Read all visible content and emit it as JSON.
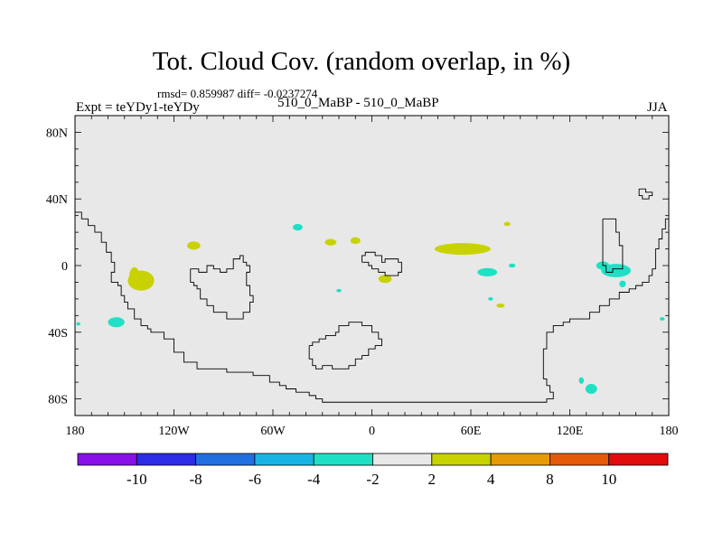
{
  "chart_data": {
    "type": "heatmap",
    "title": "Tot. Cloud Cov. (random overlap, in %)",
    "stats_text": "rmsd= 0.859987 diff= -0.0237274",
    "left_label": "Expt = teYDy1-teYDy",
    "center_label": "510_0_MaBP - 510_0_MaBP",
    "right_label": "JJA",
    "xlim": [
      -180,
      180
    ],
    "ylim": [
      -90,
      90
    ],
    "x_ticks": [
      {
        "value": -180,
        "label": "180"
      },
      {
        "value": -120,
        "label": "120W"
      },
      {
        "value": -60,
        "label": "60W"
      },
      {
        "value": 0,
        "label": "0"
      },
      {
        "value": 60,
        "label": "60E"
      },
      {
        "value": 120,
        "label": "120E"
      },
      {
        "value": 180,
        "label": "180"
      }
    ],
    "y_ticks": [
      {
        "value": 80,
        "label": "80N"
      },
      {
        "value": 40,
        "label": "40N"
      },
      {
        "value": 0,
        "label": "0"
      },
      {
        "value": -40,
        "label": "40S"
      },
      {
        "value": -80,
        "label": "80S"
      }
    ],
    "background_color": "#e8e8e8",
    "colorbar": {
      "colors": [
        "#8a10e8",
        "#2c2ce4",
        "#1f6fe0",
        "#19b4e6",
        "#1fe0c4",
        "#e8e8e8",
        "#c8d200",
        "#e69a08",
        "#e45a08",
        "#e00c0c"
      ],
      "labels": [
        "-10",
        "-8",
        "-6",
        "-4",
        "-2",
        "2",
        "4",
        "8",
        "10"
      ]
    },
    "anomalies": [
      {
        "class": "+2..+4",
        "color": "#c8d200",
        "lon": -140,
        "lat": -9,
        "rlon": 8,
        "rlat": 6
      },
      {
        "class": "+2..+4",
        "color": "#c8d200",
        "lon": -144,
        "lat": -6,
        "rlon": 3,
        "rlat": 5
      },
      {
        "class": "+2..+4",
        "color": "#c8d200",
        "lon": -108,
        "lat": 12,
        "rlon": 4,
        "rlat": 2.5
      },
      {
        "class": "+2..+4",
        "color": "#c8d200",
        "lon": -25,
        "lat": 14,
        "rlon": 3.5,
        "rlat": 2
      },
      {
        "class": "+2..+4",
        "color": "#c8d200",
        "lon": -10,
        "lat": 15,
        "rlon": 3,
        "rlat": 2
      },
      {
        "class": "+2..+4",
        "color": "#c8d200",
        "lon": 8,
        "lat": -8,
        "rlon": 4,
        "rlat": 2.5
      },
      {
        "class": "+2..+4",
        "color": "#c8d200",
        "lon": 55,
        "lat": 10,
        "rlon": 17,
        "rlat": 3.5
      },
      {
        "class": "+2..+4",
        "color": "#c8d200",
        "lon": 82,
        "lat": 25,
        "rlon": 2,
        "rlat": 1.2
      },
      {
        "class": "+2..+4",
        "color": "#c8d200",
        "lon": 78,
        "lat": -24,
        "rlon": 2.5,
        "rlat": 1.2
      },
      {
        "class": "-4..-2",
        "color": "#1fe0c4",
        "lon": -155,
        "lat": -34,
        "rlon": 5,
        "rlat": 3
      },
      {
        "class": "-4..-2",
        "color": "#1fe0c4",
        "lon": -178,
        "lat": -35,
        "rlon": 1.2,
        "rlat": 1
      },
      {
        "class": "-4..-2",
        "color": "#1fe0c4",
        "lon": -45,
        "lat": 23,
        "rlon": 3,
        "rlat": 2
      },
      {
        "class": "-4..-2",
        "color": "#1fe0c4",
        "lon": -20,
        "lat": -15,
        "rlon": 1.5,
        "rlat": 1
      },
      {
        "class": "-4..-2",
        "color": "#1fe0c4",
        "lon": 70,
        "lat": -4,
        "rlon": 6,
        "rlat": 2.5
      },
      {
        "class": "-4..-2",
        "color": "#1fe0c4",
        "lon": 72,
        "lat": -20,
        "rlon": 1.5,
        "rlat": 1
      },
      {
        "class": "-4..-2",
        "color": "#1fe0c4",
        "lon": 85,
        "lat": 0,
        "rlon": 2,
        "rlat": 1.2
      },
      {
        "class": "-4..-2",
        "color": "#1fe0c4",
        "lon": 148,
        "lat": -3,
        "rlon": 9,
        "rlat": 4
      },
      {
        "class": "-4..-2",
        "color": "#1fe0c4",
        "lon": 140,
        "lat": 0,
        "rlon": 4,
        "rlat": 2.5
      },
      {
        "class": "-4..-2",
        "color": "#1fe0c4",
        "lon": 152,
        "lat": -11,
        "rlon": 2,
        "rlat": 2
      },
      {
        "class": "-4..-2",
        "color": "#1fe0c4",
        "lon": 176,
        "lat": -32,
        "rlon": 1.5,
        "rlat": 1
      },
      {
        "class": "-4..-2",
        "color": "#1fe0c4",
        "lon": 133,
        "lat": -74,
        "rlon": 3.5,
        "rlat": 3
      },
      {
        "class": "-4..-2",
        "color": "#1fe0c4",
        "lon": 127,
        "lat": -69,
        "rlon": 1.5,
        "rlat": 2
      }
    ],
    "coastlines": [
      [
        [
          -180,
          32
        ],
        [
          -176,
          28
        ],
        [
          -172,
          24
        ],
        [
          -168,
          20
        ],
        [
          -164,
          14
        ],
        [
          -161,
          8
        ],
        [
          -158,
          2
        ],
        [
          -156,
          -4
        ],
        [
          -158,
          -10
        ],
        [
          -154,
          -12
        ],
        [
          -152,
          -18
        ],
        [
          -150,
          -22
        ],
        [
          -148,
          -26
        ],
        [
          -144,
          -32
        ],
        [
          -140,
          -36
        ],
        [
          -136,
          -38
        ],
        [
          -134,
          -40
        ],
        [
          -128,
          -40
        ],
        [
          -126,
          -44
        ],
        [
          -120,
          -52
        ],
        [
          -114,
          -58
        ],
        [
          -106,
          -62
        ],
        [
          -98,
          -62
        ],
        [
          -88,
          -64
        ],
        [
          -72,
          -66
        ],
        [
          -62,
          -70
        ],
        [
          -56,
          -72
        ],
        [
          -52,
          -74
        ],
        [
          -46,
          -76
        ],
        [
          -38,
          -78
        ],
        [
          -34,
          -80
        ],
        [
          -30,
          -82
        ],
        [
          -20,
          -82
        ],
        [
          0,
          -82
        ],
        [
          40,
          -82
        ],
        [
          80,
          -82
        ],
        [
          100,
          -82
        ],
        [
          106,
          -80
        ],
        [
          110,
          -76
        ],
        [
          108,
          -72
        ],
        [
          106,
          -68
        ],
        [
          104,
          -60
        ],
        [
          104,
          -50
        ],
        [
          106,
          -40
        ],
        [
          110,
          -36
        ],
        [
          116,
          -34
        ],
        [
          120,
          -32
        ],
        [
          126,
          -32
        ],
        [
          132,
          -28
        ],
        [
          138,
          -24
        ],
        [
          144,
          -20
        ],
        [
          150,
          -16
        ],
        [
          156,
          -14
        ],
        [
          160,
          -12
        ],
        [
          164,
          -10
        ],
        [
          168,
          -6
        ],
        [
          170,
          -2
        ],
        [
          172,
          4
        ],
        [
          172,
          10
        ],
        [
          174,
          16
        ],
        [
          176,
          22
        ],
        [
          178,
          28
        ],
        [
          180,
          32
        ]
      ],
      [
        [
          -110,
          -2
        ],
        [
          -105,
          -4
        ],
        [
          -100,
          0
        ],
        [
          -96,
          -2
        ],
        [
          -92,
          -4
        ],
        [
          -88,
          -2
        ],
        [
          -84,
          4
        ],
        [
          -80,
          6
        ],
        [
          -78,
          2
        ],
        [
          -76,
          0
        ],
        [
          -74,
          -4
        ],
        [
          -76,
          -8
        ],
        [
          -76,
          -12
        ],
        [
          -74,
          -18
        ],
        [
          -72,
          -22
        ],
        [
          -74,
          -28
        ],
        [
          -78,
          -32
        ],
        [
          -86,
          -32
        ],
        [
          -88,
          -28
        ],
        [
          -94,
          -28
        ],
        [
          -96,
          -24
        ],
        [
          -100,
          -20
        ],
        [
          -104,
          -14
        ],
        [
          -106,
          -12
        ],
        [
          -108,
          -10
        ],
        [
          -110,
          -6
        ],
        [
          -110,
          -2
        ]
      ],
      [
        [
          -6,
          2
        ],
        [
          -2,
          0
        ],
        [
          0,
          -2
        ],
        [
          4,
          -4
        ],
        [
          8,
          -6
        ],
        [
          16,
          -4
        ],
        [
          18,
          -2
        ],
        [
          18,
          2
        ],
        [
          16,
          4
        ],
        [
          12,
          4
        ],
        [
          8,
          2
        ],
        [
          6,
          6
        ],
        [
          2,
          8
        ],
        [
          -4,
          6
        ],
        [
          -6,
          2
        ]
      ],
      [
        [
          -38,
          -48
        ],
        [
          -36,
          -46
        ],
        [
          -32,
          -44
        ],
        [
          -28,
          -42
        ],
        [
          -22,
          -40
        ],
        [
          -20,
          -36
        ],
        [
          -14,
          -34
        ],
        [
          -8,
          -34
        ],
        [
          -6,
          -36
        ],
        [
          0,
          -40
        ],
        [
          4,
          -44
        ],
        [
          6,
          -48
        ],
        [
          2,
          -50
        ],
        [
          -2,
          -54
        ],
        [
          -6,
          -56
        ],
        [
          -10,
          -60
        ],
        [
          -14,
          -62
        ],
        [
          -20,
          -62
        ],
        [
          -24,
          -60
        ],
        [
          -30,
          -62
        ],
        [
          -34,
          -60
        ],
        [
          -36,
          -56
        ],
        [
          -38,
          -52
        ],
        [
          -38,
          -48
        ]
      ],
      [
        [
          140,
          28
        ],
        [
          144,
          28
        ],
        [
          148,
          20
        ],
        [
          150,
          12
        ],
        [
          152,
          6
        ],
        [
          152,
          -2
        ],
        [
          146,
          -4
        ],
        [
          142,
          0
        ],
        [
          140,
          8
        ],
        [
          140,
          18
        ],
        [
          140,
          28
        ]
      ],
      [
        [
          162,
          46
        ],
        [
          166,
          44
        ],
        [
          170,
          42
        ],
        [
          168,
          40
        ],
        [
          164,
          42
        ],
        [
          162,
          46
        ]
      ]
    ]
  }
}
